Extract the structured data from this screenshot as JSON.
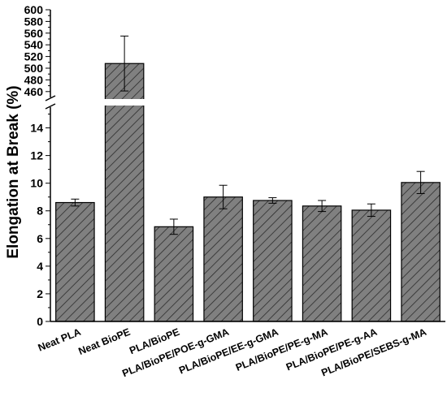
{
  "chart_data": {
    "type": "bar",
    "title": "",
    "xlabel": "",
    "ylabel": "Elongation at Break (%)",
    "categories": [
      "Neat PLA",
      "Neat BioPE",
      "PLA/BioPE",
      "PLA/BioPE/POE-g-GMA",
      "PLA/BioPE/EE-g-GMA",
      "PLA/BioPE/PE-g-MA",
      "PLA/BioPE/PE-g-AA",
      "PLA/BioPE/SEBS-g-MA"
    ],
    "values": [
      8.6,
      508,
      6.85,
      9.0,
      8.75,
      8.35,
      8.05,
      10.05
    ],
    "errors": [
      0.25,
      47,
      0.55,
      0.85,
      0.2,
      0.4,
      0.45,
      0.8
    ],
    "y_axis_break": {
      "lower_range": [
        0,
        15.5
      ],
      "upper_range": [
        450,
        600
      ]
    },
    "yticks_lower": [
      "0",
      "2",
      "4",
      "6",
      "8",
      "10",
      "12",
      "14"
    ],
    "yticks_upper": [
      "460",
      "480",
      "500",
      "520",
      "540",
      "560",
      "580",
      "600"
    ],
    "bar_color": "#808080",
    "bar_pattern": "diagonal-hatch",
    "grid": false,
    "legend": "none"
  }
}
